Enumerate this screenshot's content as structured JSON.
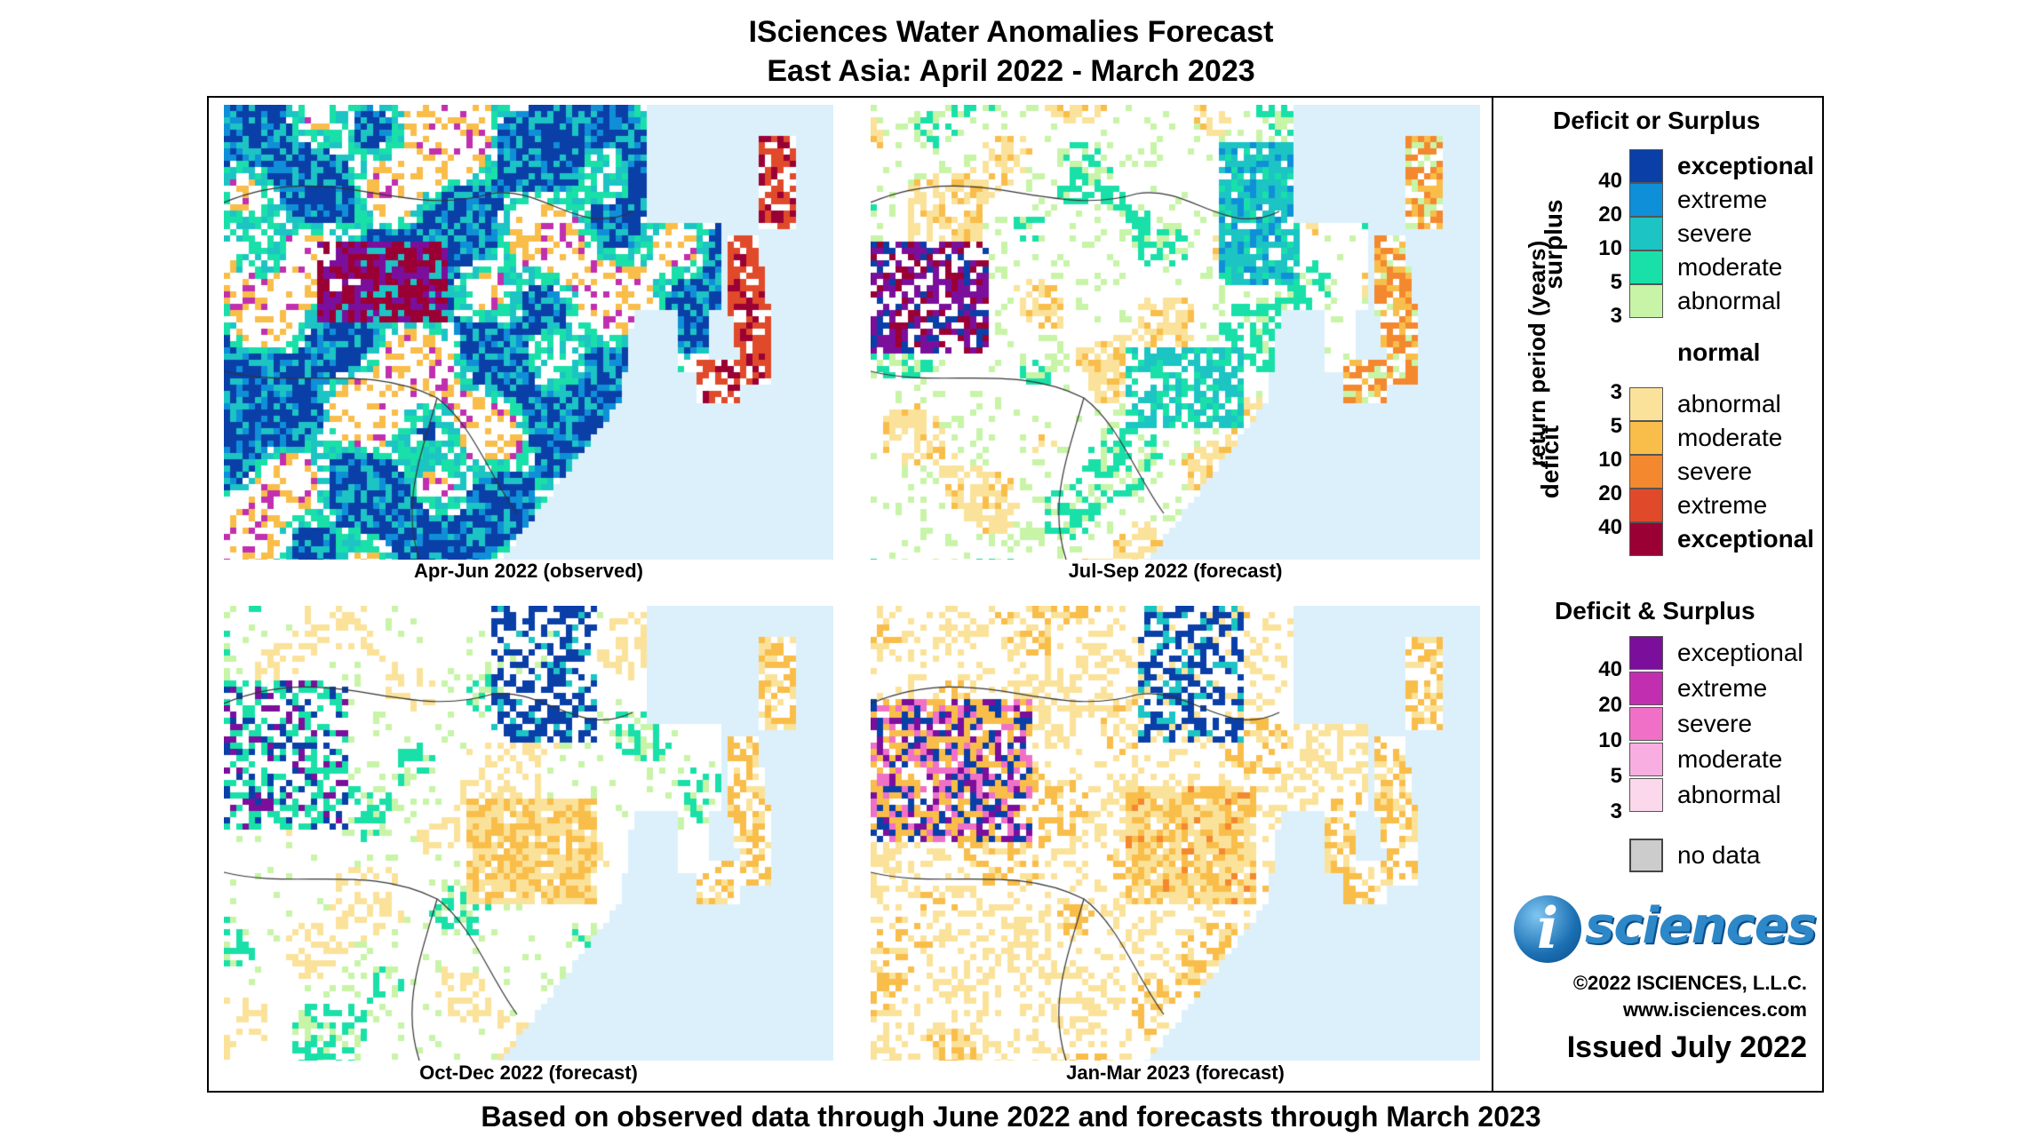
{
  "title": {
    "line1": "ISciences Water Anomalies Forecast",
    "line2": "East Asia: April 2022 - March 2023"
  },
  "footer": "Based on observed data through June 2022 and forecasts through March 2023",
  "panels": [
    {
      "label": "Apr-Jun 2022 (observed)",
      "pattern": "surplus-dominant"
    },
    {
      "label": "Jul-Sep 2022 (forecast)",
      "pattern": "mixed-northeast-surplus"
    },
    {
      "label": "Oct-Dec 2022 (forecast)",
      "pattern": "mild-deficit-south"
    },
    {
      "label": "Jan-Mar 2023 (forecast)",
      "pattern": "deficit-dominant"
    }
  ],
  "colors": {
    "ocean": "#dcf0fb",
    "no_data": "#cccccc",
    "surplus": [
      "#0a3fa8",
      "#0f8fd8",
      "#1cc4c4",
      "#19e0a8",
      "#c8f4a8"
    ],
    "deficit": [
      "#fbe29a",
      "#f9bd4a",
      "#f4882f",
      "#e04a2a",
      "#9b0034"
    ],
    "both": [
      "#7b0f9c",
      "#c12fb0",
      "#f070c8",
      "#f8aee0",
      "#fbd8ec"
    ]
  },
  "legend": {
    "deficit_or_surplus_title": "Deficit or Surplus",
    "axis_label": "return period (years)",
    "surplus_label": "surplus",
    "deficit_label": "deficit",
    "surplus_entries": [
      {
        "label": "exceptional",
        "bold": true
      },
      {
        "label": "extreme"
      },
      {
        "label": "severe"
      },
      {
        "label": "moderate"
      },
      {
        "label": "abnormal"
      }
    ],
    "surplus_ticks": [
      "40",
      "20",
      "10",
      "5",
      "3"
    ],
    "normal_label": "normal",
    "deficit_entries": [
      {
        "label": "abnormal"
      },
      {
        "label": "moderate"
      },
      {
        "label": "severe"
      },
      {
        "label": "extreme"
      },
      {
        "label": "exceptional",
        "bold": true
      }
    ],
    "deficit_ticks": [
      "3",
      "5",
      "10",
      "20",
      "40"
    ],
    "deficit_and_surplus_title": "Deficit & Surplus",
    "both_entries": [
      "exceptional",
      "extreme",
      "severe",
      "moderate",
      "abnormal"
    ],
    "both_ticks": [
      "40",
      "20",
      "10",
      "5",
      "3"
    ],
    "no_data_label": "no data"
  },
  "branding": {
    "logo_letter": "i",
    "logo_word": "sciences",
    "copyright": "©2022 ISCIENCES, L.L.C.",
    "website": "www.isciences.com",
    "issued": "Issued July 2022"
  }
}
